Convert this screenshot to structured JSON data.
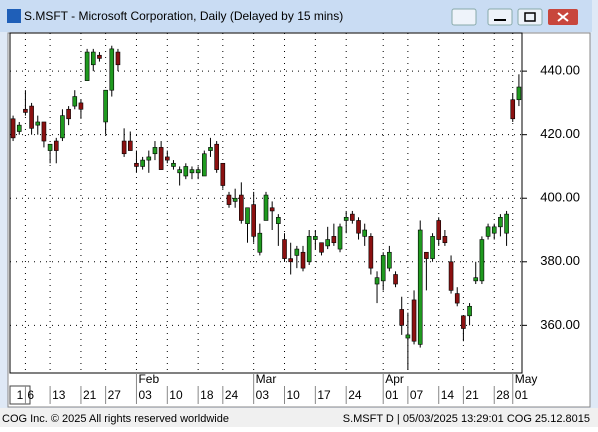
{
  "window_title": "S.MSFT - Microsoft Corporation, Daily (Delayed by 15 mins)",
  "chart_data": {
    "type": "candlestick",
    "up_color": "#1f9a1f",
    "down_color": "#8b1010",
    "grid": true,
    "categories": [
      null,
      null,
      "6",
      null,
      null,
      null,
      "13",
      null,
      null,
      null,
      null,
      "21",
      null,
      null,
      null,
      "27",
      null,
      null,
      null,
      null,
      "03",
      null,
      null,
      null,
      null,
      "10",
      null,
      null,
      null,
      null,
      "18",
      null,
      null,
      null,
      "24",
      null,
      null,
      null,
      null,
      "03",
      null,
      null,
      null,
      null,
      "10",
      null,
      null,
      null,
      null,
      "17",
      null,
      null,
      null,
      null,
      "24",
      null,
      null,
      null,
      null,
      null,
      "01",
      null,
      null,
      null,
      "07",
      null,
      null,
      null,
      null,
      "14",
      null,
      null,
      null,
      "21",
      null,
      null,
      null,
      null,
      "28",
      null,
      null,
      "01",
      null
    ],
    "months": [
      null,
      null,
      null,
      null,
      null,
      null,
      null,
      null,
      null,
      null,
      null,
      null,
      null,
      null,
      null,
      null,
      null,
      null,
      null,
      null,
      "Feb",
      null,
      null,
      null,
      null,
      null,
      null,
      null,
      null,
      null,
      null,
      null,
      null,
      null,
      null,
      null,
      null,
      null,
      null,
      "Mar",
      null,
      null,
      null,
      null,
      null,
      null,
      null,
      null,
      null,
      null,
      null,
      null,
      null,
      null,
      null,
      null,
      null,
      null,
      null,
      null,
      "Apr",
      null,
      null,
      null,
      null,
      null,
      null,
      null,
      null,
      null,
      null,
      null,
      null,
      null,
      null,
      null,
      null,
      null,
      null,
      null,
      null,
      "May",
      null
    ],
    "open": [
      425,
      421,
      428,
      429,
      423,
      424,
      415,
      418,
      419,
      428,
      429,
      430,
      437,
      442,
      445,
      424,
      434,
      446,
      418,
      418,
      411,
      410,
      412,
      414,
      416,
      413,
      410,
      408,
      407,
      408,
      408,
      407,
      415,
      417,
      411,
      401,
      399,
      401,
      392,
      398,
      383,
      393,
      397,
      392,
      387,
      381,
      382,
      383,
      380,
      387,
      386,
      385,
      388,
      384,
      393,
      395,
      393,
      388,
      388,
      373,
      374,
      378,
      376,
      365,
      356,
      368,
      354,
      383,
      381,
      393,
      388,
      380,
      370,
      363,
      363,
      374,
      374,
      388,
      389,
      391,
      389,
      431,
      431
    ],
    "high": [
      426,
      424,
      434,
      430,
      426,
      424,
      416,
      419,
      428,
      429,
      434,
      431,
      447,
      447,
      446,
      434,
      448,
      447,
      422,
      421,
      415,
      413,
      415,
      418,
      418,
      415,
      412,
      410,
      411,
      410,
      410,
      415,
      419,
      418,
      411,
      402,
      403,
      405,
      397,
      402,
      392,
      402,
      399,
      395,
      389,
      386,
      385,
      385,
      390,
      390,
      386,
      391,
      392,
      392,
      396,
      396,
      394,
      392,
      389,
      377,
      383,
      385,
      377,
      369,
      364,
      371,
      393,
      383,
      389,
      394,
      390,
      382,
      372,
      363,
      367,
      380,
      388,
      392,
      392,
      395,
      396,
      433,
      439
    ],
    "low": [
      418,
      420,
      426,
      420,
      420,
      416,
      411,
      411,
      418,
      423,
      428,
      425,
      437,
      440,
      443,
      420,
      432,
      440,
      413,
      415,
      408,
      409,
      408,
      412,
      409,
      411,
      409,
      404,
      406,
      406,
      406,
      407,
      413,
      408,
      403,
      397,
      397,
      392,
      386,
      386,
      382,
      393,
      390,
      385,
      380,
      376,
      378,
      377,
      379,
      384,
      382,
      384,
      385,
      383,
      389,
      392,
      387,
      385,
      376,
      367,
      371,
      377,
      372,
      357,
      346,
      354,
      353,
      371,
      380,
      385,
      385,
      370,
      366,
      355,
      360,
      373,
      373,
      387,
      387,
      388,
      385,
      424,
      429
    ],
    "close": [
      419,
      423,
      427,
      422,
      424,
      418,
      417,
      415,
      426,
      425,
      432,
      428,
      446,
      446,
      444,
      434,
      447,
      442,
      414,
      415,
      410,
      412,
      413,
      416,
      409,
      412,
      411,
      409,
      410,
      409,
      409,
      414,
      416,
      409,
      404,
      398,
      400,
      393,
      397,
      388,
      389,
      401,
      396,
      394,
      381,
      380,
      384,
      378,
      388,
      388,
      383,
      387,
      386,
      391,
      394,
      393,
      389,
      390,
      378,
      375,
      382,
      383,
      373,
      360,
      357,
      355,
      390,
      381,
      388,
      387,
      386,
      371,
      367,
      359,
      366,
      375,
      387,
      391,
      391,
      394,
      395,
      425,
      435
    ],
    "ylim": [
      345,
      452
    ],
    "yticks": [
      {
        "value": 360,
        "label": "360.00"
      },
      {
        "value": 380,
        "label": "380.00"
      },
      {
        "value": 400,
        "label": "400.00"
      },
      {
        "value": 420,
        "label": "420.00"
      },
      {
        "value": 440,
        "label": "440.00"
      }
    ]
  },
  "page_number": "1",
  "footer": {
    "left": "COG Inc. © 2025 All rights reserved worldwide",
    "right": "S.MSFT D | 05/03/2025 13:29:01  COG 25.12.8015"
  }
}
